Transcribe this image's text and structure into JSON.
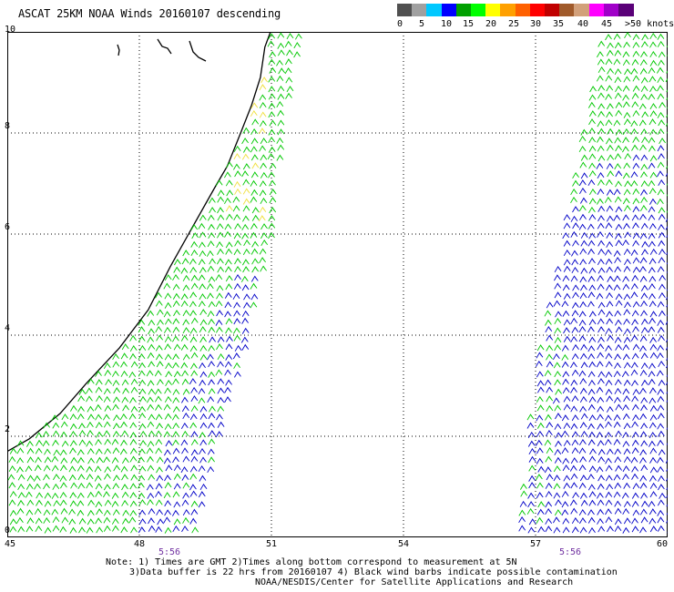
{
  "title": "ASCAT 25KM NOAA Winds 20160107 descending",
  "legend": {
    "colors": [
      "#505050",
      "#a0a0a0",
      "#00c8ff",
      "#0000ff",
      "#00a000",
      "#00ff00",
      "#ffff00",
      "#ffa000",
      "#ff6000",
      "#ff0000",
      "#c00000",
      "#a05a2a",
      "#d2a07a",
      "#ff00ff",
      "#a000c8",
      "#5a0078"
    ],
    "labels": [
      "0",
      "5",
      "10",
      "15",
      "20",
      "25",
      "30",
      "35",
      "40",
      "45",
      ">50 knots"
    ]
  },
  "map": {
    "lon_ticks": [
      "45",
      "48",
      "51",
      "54",
      "57",
      "60"
    ],
    "lat_ticks": [
      "0",
      "2",
      "4",
      "6",
      "8",
      "10"
    ],
    "lon_range": [
      45,
      60
    ],
    "lat_range": [
      0,
      10
    ],
    "pass_times": [
      "5:56",
      "5:56"
    ],
    "barb_colors": {
      "light": "#00c800",
      "moderate": "#0000c8",
      "calm": "#f0e040"
    }
  },
  "notes": {
    "line1": "Note: 1) Times are GMT 2)Times along bottom correspond to measurement at 5N",
    "line2": "3)Data buffer is 22 hrs from 20160107 4) Black wind barbs indicate possible contamination",
    "line3": "NOAA/NESDIS/Center for Satellite Applications and Research"
  }
}
